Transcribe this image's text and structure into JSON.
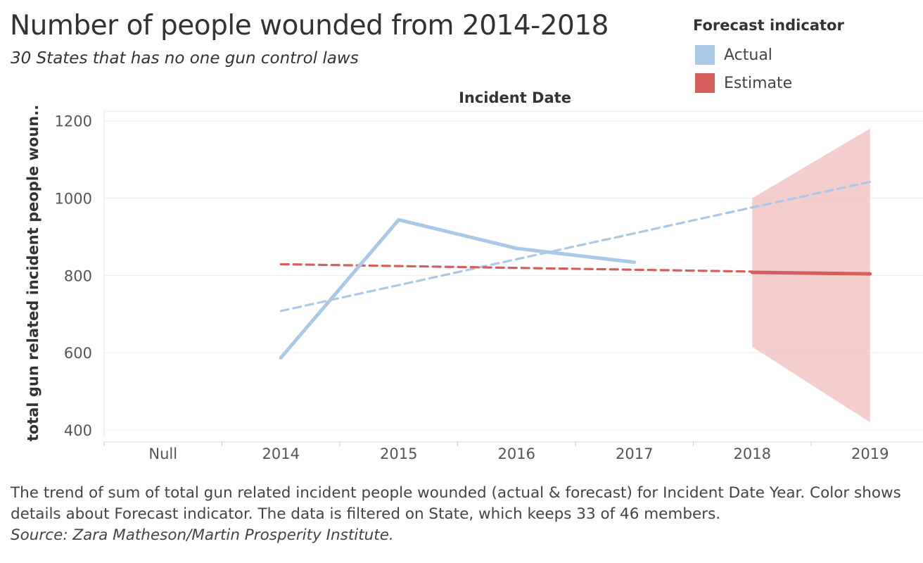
{
  "title": "Number of people wounded from 2014-2018",
  "subtitle": "30 States that has no one gun control laws",
  "legend": {
    "title": "Forecast indicator",
    "items": [
      {
        "label": "Actual",
        "color": "#a9c9e6"
      },
      {
        "label": "Estimate",
        "color": "#d45f5c"
      }
    ]
  },
  "footer": {
    "description": "The trend of sum of total gun related incident people wounded (actual & forecast)  for Incident Date Year.  Color shows details about Forecast indicator. The data is filtered on State, which keeps 33 of 46 members.",
    "source": "Source: Zara Matheson/Martin Prosperity Institute."
  },
  "chart_data": {
    "type": "line",
    "title": "Number of people wounded from 2014-2018",
    "subtitle": "30 States that has no one gun control laws",
    "xlabel": "Incident Date",
    "ylabel": "total gun related incident people woun..",
    "categories": [
      "Null",
      "2014",
      "2015",
      "2016",
      "2017",
      "2018",
      "2019"
    ],
    "yticks": [
      400,
      600,
      800,
      1000,
      1200
    ],
    "ylim": [
      380,
      1225
    ],
    "grid": true,
    "legend_position": "top-right",
    "series": [
      {
        "name": "Actual",
        "color": "#a9c9e6",
        "style": "solid",
        "points": [
          [
            "2014",
            587
          ],
          [
            "2015",
            944
          ],
          [
            "2016",
            870
          ],
          [
            "2017",
            834
          ]
        ]
      },
      {
        "name": "Estimate",
        "color": "#d45f5c",
        "style": "solid",
        "points": [
          [
            "2018",
            808
          ],
          [
            "2019",
            804
          ]
        ]
      }
    ],
    "trend_lines": [
      {
        "of": "Actual",
        "color": "#a9c9e6",
        "style": "dashed",
        "points": [
          [
            "2014",
            708
          ],
          [
            "2018",
            976
          ],
          [
            "2019",
            1042
          ]
        ]
      },
      {
        "of": "Estimate",
        "color": "#d45f5c",
        "style": "dashed",
        "points": [
          [
            "2014",
            829
          ],
          [
            "2018",
            810
          ]
        ]
      }
    ],
    "forecast_band": {
      "color": "#f2c9c6",
      "lower": [
        [
          "2018",
          615
        ],
        [
          "2019",
          420
        ]
      ],
      "upper": [
        [
          "2018",
          1000
        ],
        [
          "2019",
          1180
        ]
      ]
    }
  }
}
